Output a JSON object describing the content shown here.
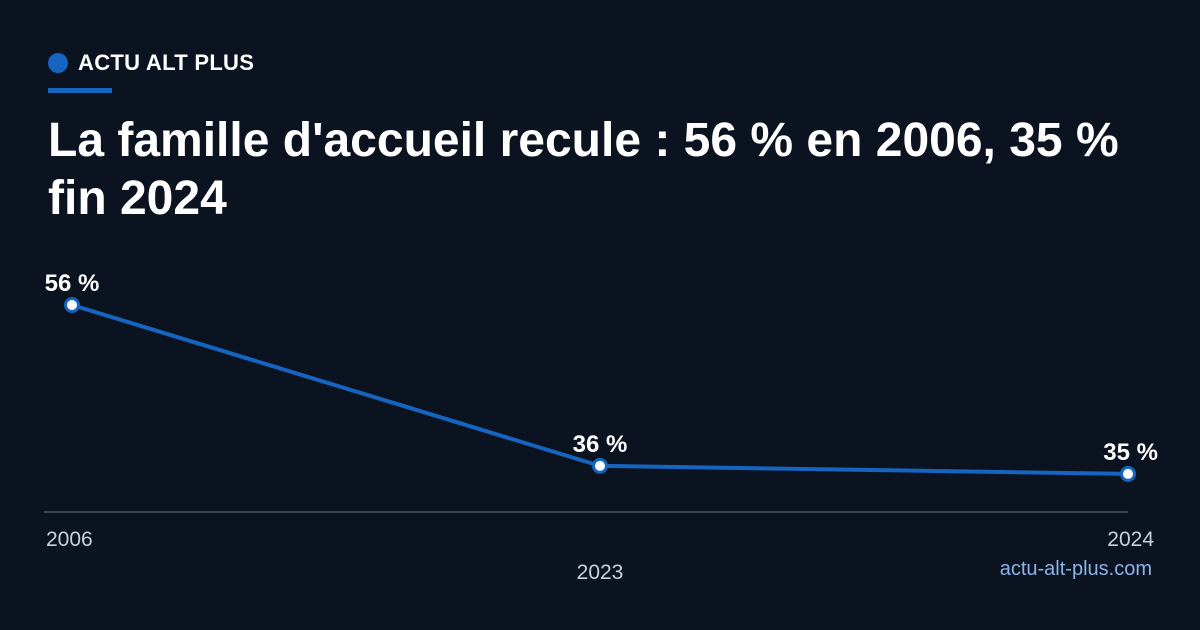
{
  "brand": {
    "name": "ACTU ALT PLUS"
  },
  "title": "La famille d'accueil recule : 56 % en 2006, 35 % fin 2024",
  "source": "actu-alt-plus.com",
  "colors": {
    "background": "#0b1220",
    "accent": "#1565c0",
    "source_link": "#8ab4ea",
    "axis": "#3a4556",
    "tick_label": "#c9d1dc"
  },
  "chart_data": {
    "type": "line",
    "x": [
      "2006",
      "2023",
      "2024"
    ],
    "series": [
      {
        "values": [
          56,
          36,
          35
        ],
        "labels": [
          "56 %",
          "36 %",
          "35 %"
        ]
      }
    ],
    "ylim": [
      33,
      56
    ],
    "grid": false,
    "legend": "none"
  }
}
